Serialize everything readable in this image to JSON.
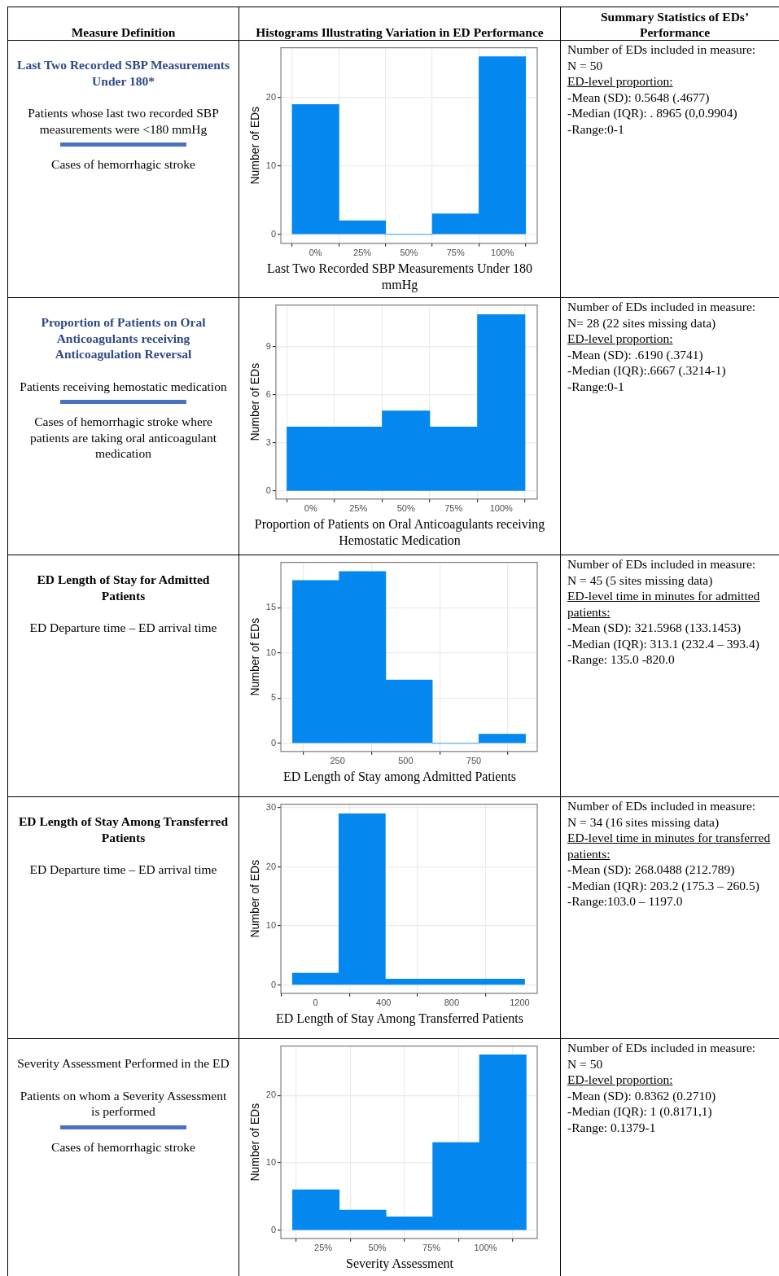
{
  "chart_data": [
    {
      "type": "other",
      "annotations": [
        "Measure Definition",
        "Histograms Illustrating Variation in ED Performance",
        "Summary Statistics of EDs’ Performance"
      ]
    },
    {
      "type": "other",
      "title": "Last Two Recorded SBP Measurements Under 180*",
      "color": "#2e4a86",
      "annotations": [
        "Patients whose last two recorded SBP measurements were <180 mmHg",
        "Cases of hemorrhagic stroke"
      ]
    },
    {
      "type": "histogram",
      "xlabel": "Last Two Recorded SBP Measurements Under 180 mmHg",
      "ylabel": "Number of EDs",
      "color": "#0587f0",
      "bins": [
        -12.5,
        12.5,
        37.5,
        62.5,
        87.5,
        112.5
      ],
      "values": [
        19,
        2,
        0,
        3,
        26
      ],
      "xlim": [
        -18.6,
        118.7
      ],
      "ylim": [
        -1.3,
        27.3
      ],
      "xticks": [
        {
          "value": 0,
          "label": "0%"
        },
        {
          "value": 25,
          "label": "25%"
        },
        {
          "value": 50,
          "label": "50%"
        },
        {
          "value": 75,
          "label": "75%"
        },
        {
          "value": 100,
          "label": "100%"
        }
      ],
      "yticks": [
        0,
        10,
        20
      ],
      "grid": true
    },
    {
      "type": "other",
      "annotations": [
        "Number of EDs included in measure:",
        "N = 50",
        "ED-level proportion:",
        "-Mean (SD): 0.5648 (.4677)",
        "-Median (IQR): . 8965 (0,0.9904)",
        "-Range:0-1"
      ]
    },
    {
      "type": "other",
      "title": "Proportion of Patients on Oral Anticoagulants receiving Anticoagulation Reversal",
      "color": "#2e4a86",
      "annotations": [
        "Patients receiving hemostatic medication",
        "Cases of hemorrhagic stroke where patients are taking oral anticoagulant medication"
      ]
    },
    {
      "type": "histogram",
      "xlabel": "Proportion of Patients on Oral Anticoagulants receiving Hemostatic Medication",
      "ylabel": "Number of EDs",
      "color": "#0587f0",
      "bins": [
        -12.5,
        12.5,
        37.5,
        62.5,
        87.5,
        112.5
      ],
      "values": [
        4,
        4,
        5,
        4,
        11
      ],
      "xlim": [
        -18.3,
        118.9
      ],
      "ylim": [
        -0.5,
        11.6
      ],
      "xticks": [
        {
          "value": 0,
          "label": "0%"
        },
        {
          "value": 25,
          "label": "25%"
        },
        {
          "value": 50,
          "label": "50%"
        },
        {
          "value": 75,
          "label": "75%"
        },
        {
          "value": 100,
          "label": "100%"
        }
      ],
      "yticks": [
        0,
        3,
        6,
        9
      ],
      "grid": true
    },
    {
      "type": "other",
      "annotations": [
        "Number of EDs included in measure:",
        "N= 28 (22 sites missing data)",
        "ED-level proportion:",
        "-Mean (SD): .6190 (.3741)",
        "-Median (IQR):.6667 (.3214-1)",
        "-Range:0-1"
      ]
    },
    {
      "type": "other",
      "title": "ED Length of Stay for Admitted Patients",
      "annotations": [
        "ED Departure time – ED arrival time"
      ]
    },
    {
      "type": "histogram",
      "xlabel": "ED Length of Stay among Admitted Patients",
      "ylabel": "Number of EDs",
      "color": "#0587f0",
      "bins": [
        85,
        256,
        427,
        598,
        769,
        940
      ],
      "values": [
        18,
        19,
        7,
        0,
        1
      ],
      "xlim": [
        42,
        983
      ],
      "ylim": [
        -0.9,
        20
      ],
      "xticks": [
        250,
        500,
        750
      ],
      "yticks": [
        0,
        5,
        10,
        15
      ],
      "grid": true
    },
    {
      "type": "other",
      "annotations": [
        "Number of EDs included in measure:",
        "N = 45 (5 sites missing data)",
        "ED-level time in minutes for admitted patients:",
        "-Mean (SD): 321.5968 (133.1453)",
        "-Median (IQR): 313.1 (232.4 – 393.4)",
        "-Range: 135.0 -820.0"
      ]
    },
    {
      "type": "other",
      "title": "ED Length of Stay Among Transferred Patients",
      "annotations": [
        "ED Departure time – ED arrival time"
      ]
    },
    {
      "type": "histogram",
      "xlabel": "ED Length of Stay Among Transferred Patients",
      "ylabel": "Number of EDs",
      "color": "#0587f0",
      "bins": [
        -136,
        137,
        410,
        683,
        956,
        1229
      ],
      "values": [
        2,
        29,
        1,
        1,
        1
      ],
      "xlim": [
        -204,
        1303
      ],
      "ylim": [
        -1.4,
        30.6
      ],
      "xticks": [
        0,
        400,
        800,
        1200
      ],
      "yticks": [
        0,
        10,
        20,
        30
      ],
      "grid": true
    },
    {
      "type": "other",
      "annotations": [
        "Number of EDs included in measure:",
        "N = 34 (16 sites missing data)",
        "ED-level time in minutes for transferred patients:",
        "-Mean (SD): 268.0488 (212.789)",
        "-Median (IQR): 203.2 (175.3 – 260.5)",
        "-Range:103.0 – 1197.0"
      ]
    },
    {
      "type": "other",
      "annotations": [
        "Severity Assessment Performed in the ED",
        "Patients on whom a Severity Assessment is performed",
        "Cases of hemorrhagic stroke"
      ]
    },
    {
      "type": "histogram",
      "xlabel": "Severity Assessment",
      "ylabel": "Number of EDs",
      "color": "#0587f0",
      "bins": [
        10.8,
        32.4,
        54,
        75.6,
        97.2,
        118.8
      ],
      "values": [
        6,
        3,
        2,
        13,
        26
      ],
      "xlim": [
        5.4,
        123.9
      ],
      "ylim": [
        -1.2,
        27.3
      ],
      "xticks": [
        {
          "value": 25,
          "label": "25%"
        },
        {
          "value": 50,
          "label": "50%"
        },
        {
          "value": 75,
          "label": "75%"
        },
        {
          "value": 100,
          "label": "100%"
        }
      ],
      "yticks": [
        0,
        10,
        20
      ],
      "grid": true
    },
    {
      "type": "other",
      "annotations": [
        "Number of EDs included in measure:",
        "N = 50",
        "ED-level proportion:",
        "-Mean (SD): 0.8362 (0.2710)",
        "-Median (IQR): 1 (0.8171,1)",
        "-Range: 0.1379-1"
      ]
    }
  ]
}
